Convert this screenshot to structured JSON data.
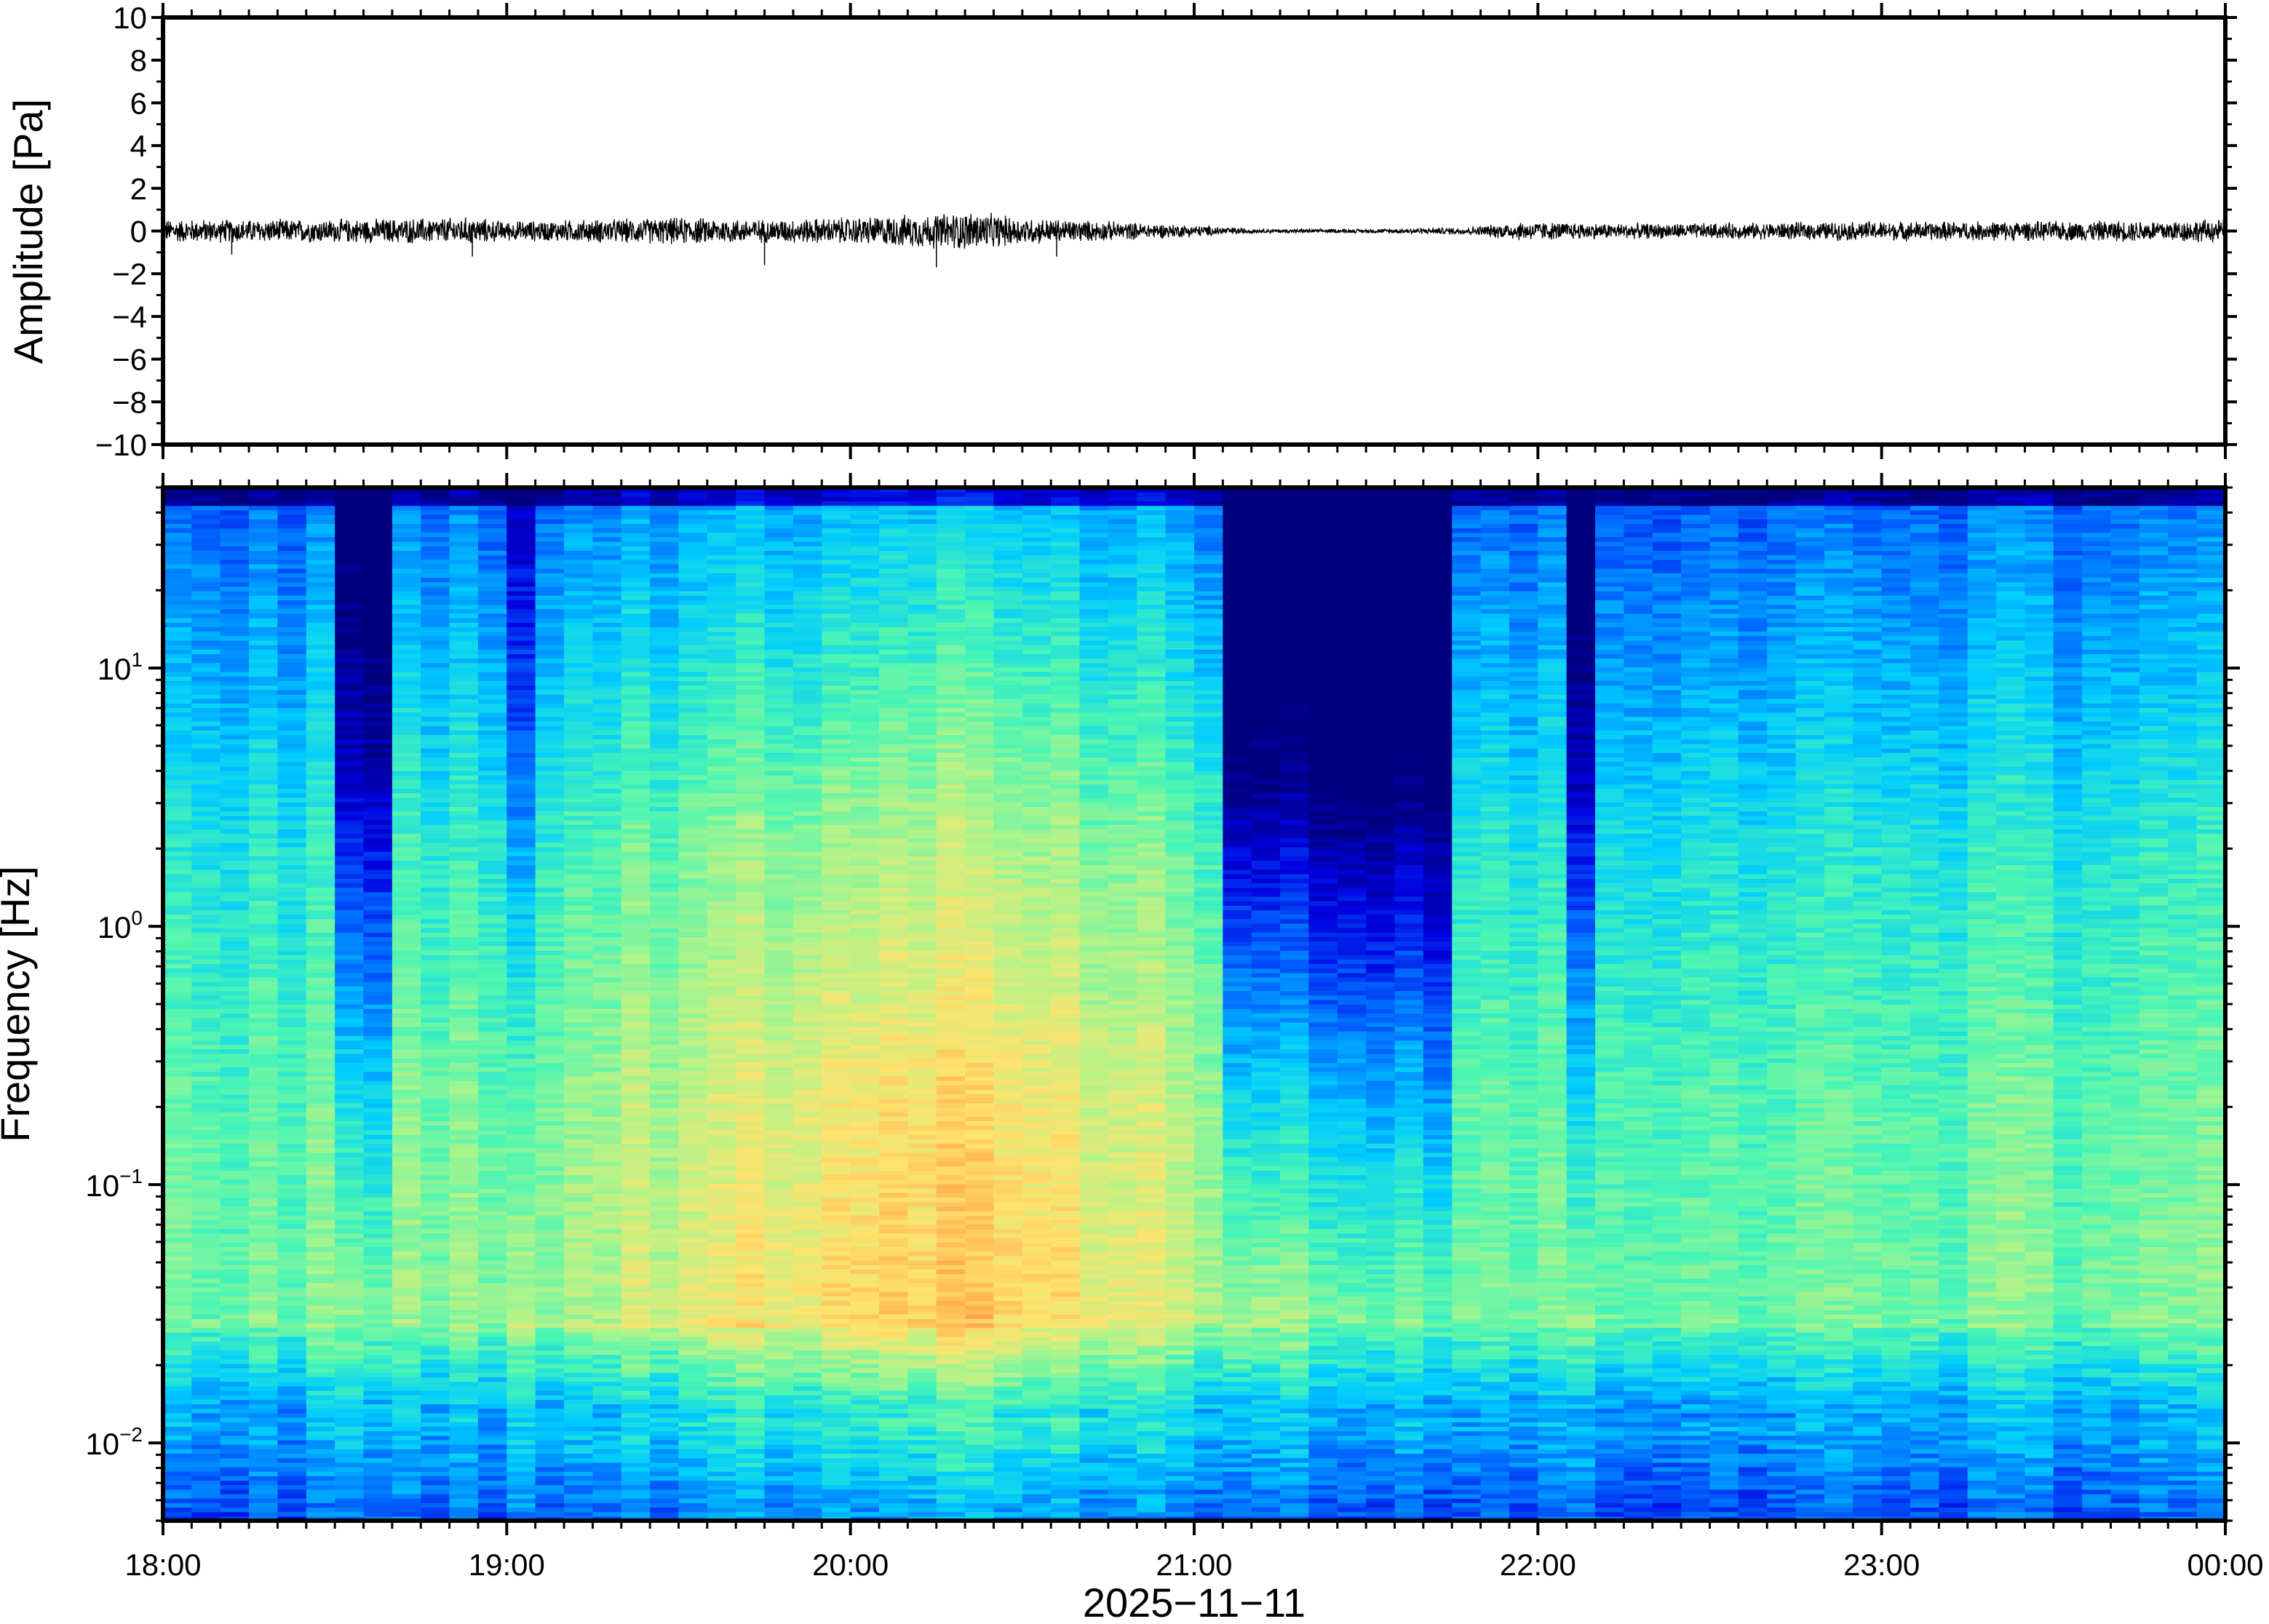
{
  "chart_data": [
    {
      "type": "line",
      "panel": "waveform",
      "ylabel": "Amplitude [Pa]",
      "ylim": [
        -10,
        10
      ],
      "yticks": [
        10,
        8,
        6,
        4,
        2,
        0,
        -2,
        -4,
        -6,
        -8,
        -10
      ],
      "ytick_labels": [
        "10",
        "8",
        "6",
        "4",
        "2",
        "0",
        "−2",
        "−4",
        "−6",
        "−8",
        "−10"
      ],
      "x_range": [
        "18:00",
        "00:00"
      ],
      "series": [
        {
          "color": "#000000",
          "envelope_times_h": [
            18.0,
            18.5,
            18.9,
            19.0,
            19.5,
            19.75,
            20.0,
            20.25,
            20.35,
            20.5,
            20.75,
            21.0,
            21.2,
            21.5,
            21.8,
            21.95,
            22.2,
            22.5,
            23.0,
            23.5,
            24.0
          ],
          "envelope_amplitude_pa": [
            0.6,
            0.6,
            0.7,
            0.5,
            0.7,
            0.6,
            0.7,
            0.9,
            1.0,
            0.7,
            0.5,
            0.3,
            0.1,
            0.1,
            0.2,
            0.5,
            0.4,
            0.4,
            0.5,
            0.5,
            0.6
          ],
          "min_spikes": [
            [
              18.2,
              -1.1
            ],
            [
              18.9,
              -1.2
            ],
            [
              19.75,
              -1.6
            ],
            [
              20.25,
              -1.7
            ],
            [
              20.6,
              -1.2
            ]
          ]
        }
      ]
    },
    {
      "type": "heatmap",
      "panel": "spectrogram",
      "ylabel": "Frequency [Hz]",
      "y_scale": "log",
      "ylim": [
        0.005,
        50
      ],
      "yticks": [
        0.01,
        0.1,
        1,
        10
      ],
      "ytick_labels": [
        {
          "base": "10",
          "exp": "−2"
        },
        {
          "base": "10",
          "exp": "−1"
        },
        {
          "base": "10",
          "exp": "0"
        },
        {
          "base": "10",
          "exp": "1"
        }
      ],
      "xlabel": "2025−11−11",
      "xticks": [
        "18:00",
        "19:00",
        "20:00",
        "21:00",
        "22:00",
        "23:00",
        "00:00"
      ],
      "colormap": "jet",
      "colormap_stops": [
        "#00007f",
        "#0000e0",
        "#0066ff",
        "#00ccff",
        "#48f5b5",
        "#b0f48a",
        "#ffe36e",
        "#ffa94d",
        "#f24b3a"
      ],
      "quiet_periods_h": [
        [
          18.5,
          18.7,
          0.8
        ],
        [
          19.0,
          19.12,
          0.5
        ],
        [
          21.1,
          21.75,
          1.0
        ],
        [
          22.05,
          22.2,
          0.8
        ]
      ]
    }
  ]
}
